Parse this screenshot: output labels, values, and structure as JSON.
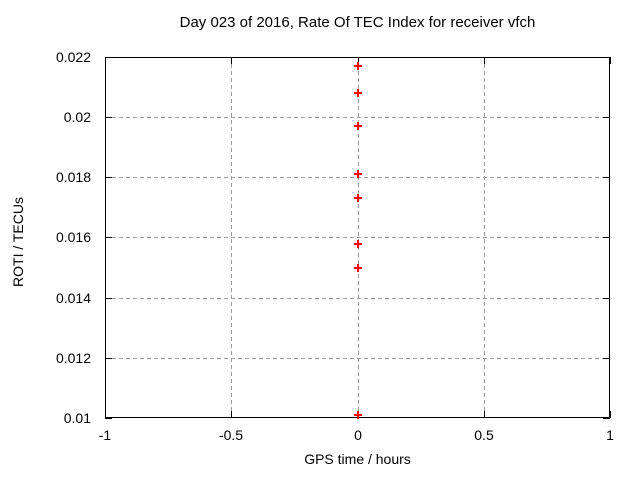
{
  "window": {
    "background": "#ffffff",
    "text_color": "#000000"
  },
  "chart_data": {
    "type": "scatter",
    "title": "Day 023 of 2016, Rate Of TEC Index for receiver vfch",
    "xlabel": "GPS time / hours",
    "ylabel": "ROTI / TECUs",
    "xlim": [
      -1,
      1
    ],
    "ylim": [
      0.01,
      0.022
    ],
    "xticks": [
      -1,
      -0.5,
      0,
      0.5,
      1
    ],
    "yticks": [
      0.01,
      0.012,
      0.014,
      0.016,
      0.018,
      0.02,
      0.022
    ],
    "grid": "dashed",
    "legend_position": "none",
    "axis_color": "#000000",
    "grid_color": "#9c9c9c",
    "marker": {
      "shape": "plus",
      "color": "#ff0000"
    },
    "series": [
      {
        "name": "ROTI",
        "points": [
          {
            "x": 0,
            "y": 0.0217
          },
          {
            "x": 0,
            "y": 0.0208
          },
          {
            "x": 0,
            "y": 0.0197
          },
          {
            "x": 0,
            "y": 0.0181
          },
          {
            "x": 0,
            "y": 0.0173
          },
          {
            "x": 0,
            "y": 0.0158
          },
          {
            "x": 0,
            "y": 0.015
          },
          {
            "x": 0,
            "y": 0.0101
          }
        ]
      }
    ]
  }
}
